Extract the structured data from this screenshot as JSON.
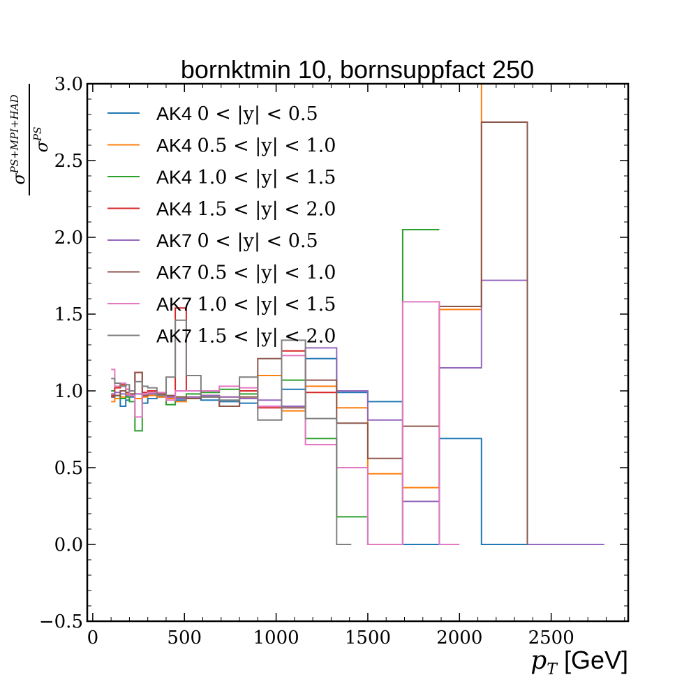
{
  "chart_data": {
    "type": "line",
    "title": "bornktmin 10, bornsuppfact 250",
    "xlabel_math": "p",
    "xlabel_sub": "T",
    "xlabel_unit": "[GeV]",
    "ylabel_num": "σ",
    "ylabel_num_sup": "PS+MPI+HAD",
    "ylabel_den": "σ",
    "ylabel_den_sup": "PS",
    "xlim": [
      -30,
      2920
    ],
    "ylim": [
      -0.5,
      3.0
    ],
    "xticks": [
      0,
      500,
      1000,
      1500,
      2000,
      2500
    ],
    "xtick_labels": [
      "0",
      "500",
      "1000",
      "1500",
      "2000",
      "2500"
    ],
    "yticks": [
      -0.5,
      0.0,
      0.5,
      1.0,
      1.5,
      2.0,
      2.5,
      3.0
    ],
    "ytick_labels": [
      "−0.5",
      "0.0",
      "0.5",
      "1.0",
      "1.5",
      "2.0",
      "2.5",
      "3.0"
    ],
    "legend_position": "upper-left",
    "series": [
      {
        "name": "AK4",
        "range_label": "0 < |y| < 0.5",
        "color": "#1f77b4",
        "edges": [
          100,
          120,
          150,
          180,
          200,
          230,
          270,
          300,
          350,
          400,
          450,
          510,
          590,
          690,
          800,
          900,
          1030,
          1160,
          1330,
          1500,
          1690,
          1890,
          2120,
          2370
        ],
        "values": [
          0.96,
          0.97,
          0.9,
          0.94,
          0.96,
          0.95,
          0.92,
          0.95,
          0.96,
          0.95,
          0.94,
          0.96,
          0.94,
          0.93,
          0.92,
          0.9,
          1.01,
          1.21,
          0.99,
          0.93,
          0.0,
          0.69,
          0.0
        ]
      },
      {
        "name": "AK4",
        "range_label": "0.5 < |y| < 1.0",
        "color": "#ff7f0e",
        "edges": [
          100,
          120,
          150,
          180,
          200,
          230,
          270,
          300,
          350,
          400,
          450,
          510,
          590,
          690,
          800,
          900,
          1030,
          1160,
          1330,
          1500,
          1690,
          1890,
          2120,
          2370
        ],
        "values": [
          0.93,
          0.95,
          0.96,
          0.98,
          0.97,
          0.95,
          0.96,
          0.97,
          0.96,
          0.95,
          0.93,
          0.96,
          0.97,
          0.96,
          0.95,
          1.1,
          0.87,
          1.03,
          0.89,
          0.46,
          0.37,
          1.53,
          3.2
        ]
      },
      {
        "name": "AK4",
        "range_label": "1.0 < |y| < 1.5",
        "color": "#2ca02c",
        "edges": [
          100,
          120,
          150,
          180,
          200,
          230,
          270,
          300,
          350,
          400,
          450,
          510,
          590,
          690,
          800,
          900,
          1030,
          1160,
          1330,
          1500,
          1690,
          1890
        ],
        "values": [
          1.0,
          0.97,
          0.95,
          0.96,
          0.93,
          0.74,
          0.97,
          0.98,
          0.97,
          0.91,
          0.96,
          0.98,
          0.99,
          1.01,
          0.98,
          0.9,
          1.07,
          0.69,
          0.18,
          0.0,
          2.05
        ]
      },
      {
        "name": "AK4",
        "range_label": "1.5 < |y| < 2.0",
        "color": "#d62728",
        "edges": [
          100,
          120,
          150,
          180,
          200,
          230,
          270,
          300,
          350,
          400,
          450,
          510,
          590,
          690,
          800,
          900,
          1030,
          1160,
          1330
        ],
        "values": [
          0.97,
          1.02,
          1.04,
          1.01,
          1.0,
          1.12,
          0.99,
          1.0,
          0.98,
          0.96,
          1.54,
          1.0,
          0.97,
          0.9,
          1.0,
          0.89,
          1.26,
          0.99
        ]
      },
      {
        "name": "AK7",
        "range_label": "0 < |y| < 0.5",
        "color": "#9467bd",
        "edges": [
          100,
          120,
          150,
          180,
          200,
          230,
          270,
          300,
          350,
          400,
          450,
          510,
          590,
          690,
          800,
          900,
          1030,
          1160,
          1330,
          1500,
          1690,
          1890,
          2120,
          2370
        ],
        "values": [
          0.98,
          0.99,
          0.98,
          0.97,
          0.98,
          0.98,
          0.97,
          0.98,
          0.97,
          0.96,
          0.95,
          0.96,
          0.97,
          0.96,
          0.95,
          0.94,
          0.9,
          1.28,
          1.0,
          0.81,
          0.28,
          1.15,
          1.72
        ]
      },
      {
        "name": "AK7",
        "range_label": "0.5 < |y| < 1.0",
        "color": "#8c564b",
        "edges": [
          100,
          120,
          150,
          180,
          200,
          230,
          270,
          300,
          350,
          400,
          450,
          510,
          590,
          690,
          800,
          900,
          1030,
          1160,
          1330,
          1500,
          1690,
          1890,
          2120,
          2370,
          2500
        ],
        "values": [
          0.96,
          0.97,
          1.0,
          0.99,
          0.98,
          1.12,
          0.97,
          0.99,
          0.98,
          0.97,
          0.96,
          0.95,
          0.96,
          0.9,
          0.96,
          1.21,
          0.89,
          1.07,
          0.79,
          0.56,
          0.77,
          1.55,
          2.75,
          0.0
        ]
      },
      {
        "name": "AK7",
        "range_label": "1.0 < |y| < 1.5",
        "color": "#e377c2",
        "edges": [
          100,
          120,
          150,
          180,
          200,
          230,
          270,
          300,
          350,
          400,
          450,
          510,
          590,
          690,
          800,
          900,
          1030,
          1160,
          1330,
          1500,
          1690,
          1890,
          2000
        ],
        "values": [
          1.14,
          1.03,
          1.05,
          1.01,
          0.97,
          0.83,
          0.98,
          0.99,
          0.99,
          0.94,
          1.0,
          1.0,
          1.0,
          1.03,
          1.02,
          0.9,
          1.23,
          0.65,
          0.5,
          0.0,
          1.58,
          0.0
        ]
      },
      {
        "name": "AK7",
        "range_label": "1.5 < |y| < 2.0",
        "color": "#7f7f7f",
        "edges": [
          100,
          120,
          150,
          180,
          200,
          230,
          270,
          300,
          350,
          400,
          450,
          510,
          590,
          690,
          800,
          900,
          1030,
          1160,
          1330,
          1410
        ],
        "values": [
          1.08,
          1.05,
          1.03,
          1.04,
          1.0,
          1.06,
          1.03,
          1.02,
          0.97,
          1.09,
          1.46,
          1.1,
          0.96,
          0.94,
          1.09,
          0.81,
          1.33,
          0.82,
          0.0
        ]
      },
      {
        "name": "",
        "range_label": "",
        "color": "#9467bd",
        "edges": [
          2370,
          2500,
          2790
        ],
        "values": [
          0.0,
          0.0
        ]
      }
    ]
  }
}
